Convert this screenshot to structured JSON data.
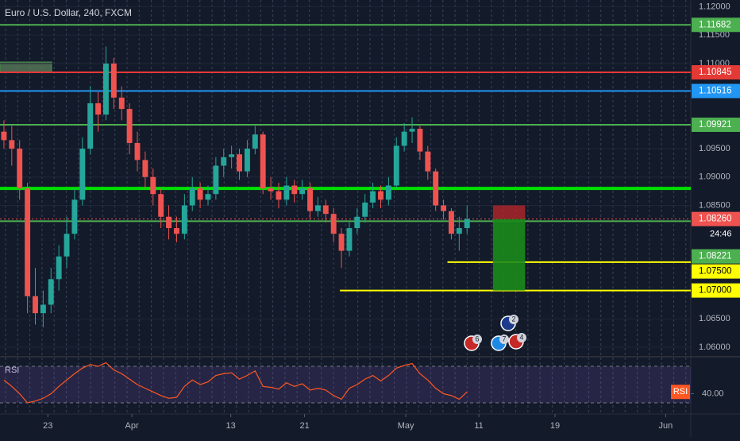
{
  "chart_data": {
    "type": "candlestick",
    "title": "Euro / U.S. Dollar, 240, FXCM",
    "ylim": [
      1.0586,
      1.1212
    ],
    "yticks": [
      {
        "value": 1.12,
        "label": "1.12000"
      },
      {
        "value": 1.115,
        "label": "1.11500"
      },
      {
        "value": 1.11,
        "label": "1.11000"
      },
      {
        "value": 1.095,
        "label": "1.09500"
      },
      {
        "value": 1.09,
        "label": "1.09000"
      },
      {
        "value": 1.085,
        "label": "1.08500"
      },
      {
        "value": 1.065,
        "label": "1.06500"
      },
      {
        "value": 1.06,
        "label": "1.06000"
      }
    ],
    "xlim": [
      0,
      88
    ],
    "xticks": [
      {
        "value": 6.1,
        "label": "23"
      },
      {
        "value": 16.8,
        "label": "Apr"
      },
      {
        "value": 29.4,
        "label": "13"
      },
      {
        "value": 38.8,
        "label": "21"
      },
      {
        "value": 51.7,
        "label": "May"
      },
      {
        "value": 61,
        "label": "11"
      },
      {
        "value": 70.7,
        "label": "19"
      },
      {
        "value": 84.8,
        "label": "Jun"
      }
    ],
    "up_color": "#26a69a",
    "down_color": "#ef5350",
    "open": [
      1.098,
      1.0965,
      1.095,
      1.088,
      1.069,
      1.066,
      1.0675,
      1.072,
      1.076,
      1.08,
      1.086,
      1.095,
      1.103,
      1.101,
      1.11,
      1.104,
      1.102,
      1.096,
      1.093,
      1.09,
      1.087,
      1.083,
      1.081,
      1.08,
      1.085,
      1.088,
      1.086,
      1.087,
      1.092,
      1.0935,
      1.094,
      1.091,
      1.095,
      1.0975,
      1.088,
      1.0875,
      1.086,
      1.0885,
      1.087,
      1.088,
      1.084,
      1.085,
      1.0835,
      1.08,
      1.077,
      1.081,
      1.083,
      1.0855,
      1.0875,
      1.086,
      1.0885,
      1.0955,
      1.098,
      1.0985,
      1.0945,
      1.091,
      1.085,
      1.084,
      1.08,
      1.081
    ],
    "high": [
      1.1,
      1.099,
      1.0965,
      1.089,
      1.074,
      1.07,
      1.074,
      1.078,
      1.083,
      1.088,
      1.097,
      1.106,
      1.105,
      1.113,
      1.111,
      1.106,
      1.103,
      1.098,
      1.0945,
      1.0915,
      1.088,
      1.085,
      1.083,
      1.087,
      1.09,
      1.089,
      1.0885,
      1.0935,
      1.095,
      1.0955,
      1.095,
      1.0965,
      1.099,
      1.098,
      1.09,
      1.089,
      1.09,
      1.0895,
      1.0895,
      1.089,
      1.0865,
      1.086,
      1.0845,
      1.081,
      1.082,
      1.0845,
      1.087,
      1.089,
      1.0885,
      1.09,
      1.097,
      1.0995,
      1.1005,
      1.099,
      1.0955,
      1.0915,
      1.086,
      1.0845,
      1.083,
      1.085
    ],
    "low": [
      1.095,
      1.092,
      1.086,
      1.066,
      1.064,
      1.0635,
      1.066,
      1.07,
      1.074,
      1.079,
      1.085,
      1.094,
      1.098,
      1.1,
      1.102,
      1.1,
      1.094,
      1.091,
      1.088,
      1.085,
      1.081,
      1.079,
      1.0785,
      1.079,
      1.084,
      1.0845,
      1.085,
      1.086,
      1.09,
      1.0915,
      1.0895,
      1.09,
      1.094,
      1.087,
      1.086,
      1.0845,
      1.085,
      1.0855,
      1.086,
      1.0825,
      1.083,
      1.082,
      1.0785,
      1.074,
      1.076,
      1.08,
      1.082,
      1.0845,
      1.0845,
      1.085,
      1.088,
      1.0945,
      1.096,
      1.093,
      1.0895,
      1.084,
      1.0825,
      1.079,
      1.077,
      1.08
    ],
    "close": [
      1.0965,
      1.095,
      1.088,
      1.069,
      1.066,
      1.0675,
      1.072,
      1.076,
      1.08,
      1.086,
      1.095,
      1.103,
      1.101,
      1.11,
      1.104,
      1.102,
      1.096,
      1.093,
      1.09,
      1.087,
      1.083,
      1.081,
      1.08,
      1.085,
      1.088,
      1.086,
      1.087,
      1.092,
      1.0935,
      1.094,
      1.091,
      1.095,
      1.0975,
      1.088,
      1.0875,
      1.086,
      1.0885,
      1.087,
      1.088,
      1.084,
      1.085,
      1.0835,
      1.08,
      1.077,
      1.081,
      1.083,
      1.0855,
      1.0875,
      1.086,
      1.0885,
      1.0955,
      1.098,
      1.0985,
      1.0945,
      1.091,
      1.085,
      1.084,
      1.08,
      1.081,
      1.0826
    ],
    "levels": [
      {
        "value": 1.11682,
        "label": "1.11682",
        "color": "#4caf50"
      },
      {
        "value": 1.10845,
        "label": "1.10845",
        "color": "#e53935"
      },
      {
        "value": 1.10516,
        "label": "1.10516",
        "color": "#2196f3"
      },
      {
        "value": 1.09921,
        "label": "1.09921",
        "color": "#4caf50"
      },
      {
        "value": 1.088,
        "color": "#00e000"
      },
      {
        "value": 1.0826,
        "label": "1.08260",
        "color": "#ef5350",
        "countdown": "24:46"
      },
      {
        "value": 1.08221,
        "label": "1.08221",
        "color": "#4caf50"
      },
      {
        "value": 1.075,
        "label": "1.07500",
        "color": "#ffff00",
        "start": 57
      },
      {
        "value": 1.07,
        "label": "1.07000",
        "color": "#ffff00",
        "start": 43.3
      }
    ],
    "position": {
      "entry": 1.0826,
      "stop": 1.085,
      "target": 1.07,
      "start": 62.8,
      "end": 66.9
    },
    "events": [
      {
        "label": "6"
      },
      {
        "label": "7"
      },
      {
        "label": "4"
      },
      {
        "label": "2"
      }
    ],
    "rsi": {
      "title": "RSI",
      "tag": "RSI",
      "ylim": [
        18.7,
        79.6
      ],
      "yticks": [
        {
          "value": 40,
          "label": "40.00"
        }
      ],
      "levels": [
        30,
        70
      ],
      "color": "#ff5722",
      "values": [
        55,
        48,
        40,
        30,
        32,
        35,
        40,
        48,
        55,
        62,
        68,
        72,
        70,
        74,
        66,
        62,
        56,
        50,
        46,
        42,
        38,
        35,
        36,
        48,
        55,
        50,
        53,
        60,
        62,
        63,
        56,
        60,
        65,
        48,
        47,
        45,
        52,
        48,
        51,
        44,
        46,
        44,
        38,
        34,
        46,
        50,
        56,
        60,
        54,
        60,
        68,
        71,
        73,
        62,
        55,
        46,
        40,
        38,
        34,
        42
      ]
    }
  }
}
